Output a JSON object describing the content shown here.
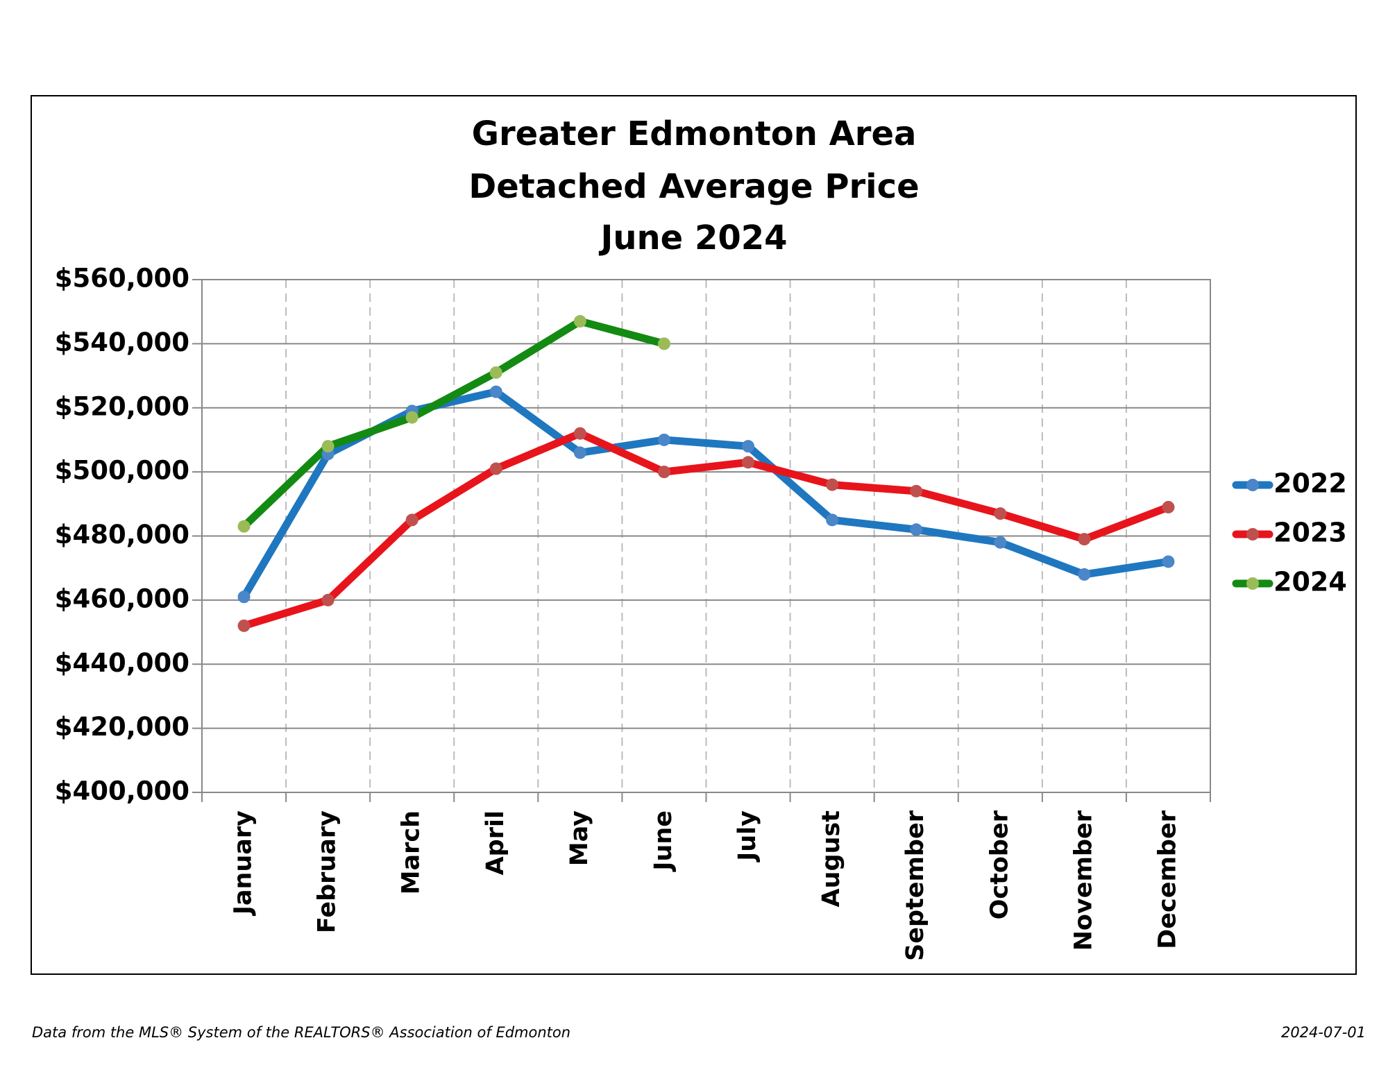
{
  "chart_data": {
    "type": "line",
    "title": [
      "Greater Edmonton Area",
      "Detached Average Price",
      "June 2024"
    ],
    "categories": [
      "January",
      "February",
      "March",
      "April",
      "May",
      "June",
      "July",
      "August",
      "September",
      "October",
      "November",
      "December"
    ],
    "series": [
      {
        "name": "2022",
        "color": "#1f77c0",
        "marker_color": "#4a86c8",
        "values": [
          461000,
          505600,
          519000,
          525000,
          506000,
          510000,
          508000,
          485000,
          482000,
          478000,
          468000,
          472000
        ]
      },
      {
        "name": "2023",
        "color": "#e8141b",
        "marker_color": "#c0504d",
        "values": [
          452000,
          460000,
          485000,
          501000,
          512000,
          500000,
          503000,
          496000,
          494000,
          487000,
          479000,
          489000
        ]
      },
      {
        "name": "2024",
        "color": "#138a12",
        "marker_color": "#9bbb59",
        "values": [
          483000,
          508000,
          517000,
          531000,
          547000,
          540000,
          null,
          null,
          null,
          null,
          null,
          null
        ]
      }
    ],
    "ylim": [
      400000,
      560000
    ],
    "yticks": [
      {
        "value": 400000,
        "label": "$400,000"
      },
      {
        "value": 420000,
        "label": "$420,000"
      },
      {
        "value": 440000,
        "label": "$440,000"
      },
      {
        "value": 460000,
        "label": "$460,000"
      },
      {
        "value": 480000,
        "label": "$480,000"
      },
      {
        "value": 500000,
        "label": "$500,000"
      },
      {
        "value": 520000,
        "label": "$520,000"
      },
      {
        "value": 540000,
        "label": "$540,000"
      },
      {
        "value": 560000,
        "label": "$560,000"
      }
    ],
    "grid": true,
    "legend": "right",
    "source": "Data from the MLS® System of the REALTORS® Association of Edmonton",
    "date": "2024-07-01"
  }
}
